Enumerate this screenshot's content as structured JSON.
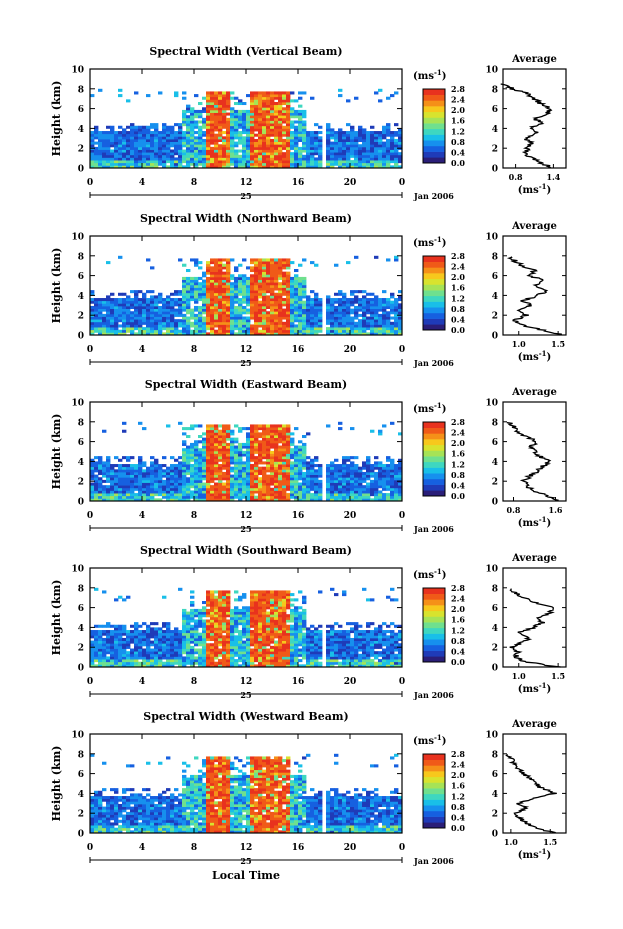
{
  "figure": {
    "x_axis_label": "Local Time",
    "day_label": "25",
    "month_label": "Jan 2006",
    "y_axis_label": "Height (km)",
    "units_label": "(ms",
    "units_exp": "-1",
    "units_close": ")",
    "average_title": "Average"
  },
  "chart_data": [
    {
      "type": "heatmap",
      "title": "Spectral Width (Vertical Beam)",
      "x_ticks": [
        "0",
        "4",
        "8",
        "12",
        "16",
        "20",
        "0"
      ],
      "xlim": [
        0,
        24
      ],
      "ylim": [
        0,
        10
      ],
      "y_ticks": [
        "0",
        "2",
        "4",
        "6",
        "8",
        "10"
      ],
      "colorbar": {
        "ticks": [
          "0.0",
          "0.4",
          "0.8",
          "1.2",
          "1.6",
          "2.0",
          "2.4",
          "2.8"
        ],
        "range": [
          0,
          2.8
        ]
      },
      "average_profile": {
        "xlabel_ticks": [
          "0.8",
          "1.4"
        ],
        "xlim": [
          0.6,
          1.6
        ],
        "height": [
          0,
          0.5,
          1,
          1.5,
          2,
          2.5,
          3,
          3.5,
          4,
          4.5,
          5,
          5.5,
          6,
          6.5,
          7,
          7.5,
          8,
          8.5
        ],
        "value": [
          1.4,
          1.2,
          1.05,
          0.95,
          1.0,
          1.05,
          0.95,
          1.15,
          1.0,
          1.25,
          1.1,
          1.3,
          1.35,
          1.2,
          1.1,
          1.0,
          0.75,
          0.6
        ]
      }
    },
    {
      "type": "heatmap",
      "title": "Spectral Width (Northward Beam)",
      "x_ticks": [
        "0",
        "4",
        "8",
        "12",
        "16",
        "20",
        "0"
      ],
      "xlim": [
        0,
        24
      ],
      "ylim": [
        0,
        10
      ],
      "y_ticks": [
        "0",
        "2",
        "4",
        "6",
        "8",
        "10"
      ],
      "colorbar": {
        "ticks": [
          "0.0",
          "0.4",
          "0.8",
          "1.2",
          "1.6",
          "2.0",
          "2.4",
          "2.8"
        ],
        "range": [
          0,
          2.8
        ]
      },
      "average_profile": {
        "xlabel_ticks": [
          "1.0",
          "1.5"
        ],
        "xlim": [
          0.8,
          1.6
        ],
        "height": [
          0,
          0.5,
          1,
          1.5,
          2,
          2.5,
          3,
          3.5,
          4,
          4.5,
          5,
          5.5,
          6,
          6.5,
          7,
          7.5,
          8
        ],
        "value": [
          1.55,
          1.3,
          1.05,
          0.95,
          1.1,
          1.0,
          1.15,
          1.05,
          1.25,
          1.35,
          1.2,
          1.3,
          1.15,
          1.2,
          1.05,
          0.95,
          0.85
        ]
      }
    },
    {
      "type": "heatmap",
      "title": "Spectral Width (Eastward Beam)",
      "x_ticks": [
        "0",
        "4",
        "8",
        "12",
        "16",
        "20",
        "0"
      ],
      "xlim": [
        0,
        24
      ],
      "ylim": [
        0,
        10
      ],
      "y_ticks": [
        "0",
        "2",
        "4",
        "6",
        "8",
        "10"
      ],
      "colorbar": {
        "ticks": [
          "0.0",
          "0.4",
          "0.8",
          "1.2",
          "1.6",
          "2.0",
          "2.4",
          "2.8"
        ],
        "range": [
          0,
          2.8
        ]
      },
      "average_profile": {
        "xlabel_ticks": [
          "0.8",
          "1.6"
        ],
        "xlim": [
          0.6,
          1.8
        ],
        "height": [
          0,
          0.5,
          1,
          1.5,
          2,
          2.5,
          3,
          3.5,
          4,
          4.5,
          5,
          5.5,
          6,
          6.5,
          7,
          7.5,
          8
        ],
        "value": [
          1.7,
          1.45,
          1.2,
          1.05,
          1.0,
          1.1,
          1.25,
          1.35,
          1.5,
          1.3,
          1.2,
          1.1,
          1.25,
          1.05,
          0.9,
          0.8,
          0.7
        ]
      }
    },
    {
      "type": "heatmap",
      "title": "Spectral Width (Southward Beam)",
      "x_ticks": [
        "0",
        "4",
        "8",
        "12",
        "16",
        "20",
        "0"
      ],
      "xlim": [
        0,
        24
      ],
      "ylim": [
        0,
        10
      ],
      "y_ticks": [
        "0",
        "2",
        "4",
        "6",
        "8",
        "10"
      ],
      "colorbar": {
        "ticks": [
          "0.0",
          "0.4",
          "0.8",
          "1.2",
          "1.6",
          "2.0",
          "2.4",
          "2.8"
        ],
        "range": [
          0,
          2.8
        ]
      },
      "average_profile": {
        "xlabel_ticks": [
          "1.0",
          "1.5"
        ],
        "xlim": [
          0.8,
          1.6
        ],
        "height": [
          0,
          0.5,
          1,
          1.5,
          2,
          2.5,
          3,
          3.5,
          4,
          4.5,
          5,
          5.5,
          6,
          6.5,
          7,
          7.5,
          8
        ],
        "value": [
          1.5,
          1.1,
          0.95,
          1.0,
          0.9,
          1.05,
          1.15,
          1.0,
          1.2,
          1.3,
          1.25,
          1.4,
          1.45,
          1.2,
          1.05,
          0.95,
          0.85
        ]
      }
    },
    {
      "type": "heatmap",
      "title": "Spectral Width (Westward Beam)",
      "x_ticks": [
        "0",
        "4",
        "8",
        "12",
        "16",
        "20",
        "0"
      ],
      "xlim": [
        0,
        24
      ],
      "ylim": [
        0,
        10
      ],
      "y_ticks": [
        "0",
        "2",
        "4",
        "6",
        "8",
        "10"
      ],
      "colorbar": {
        "ticks": [
          "0.0",
          "0.4",
          "0.8",
          "1.2",
          "1.6",
          "2.0",
          "2.4",
          "2.8"
        ],
        "range": [
          0,
          2.8
        ]
      },
      "average_profile": {
        "xlabel_ticks": [
          "1.0",
          "1.5"
        ],
        "xlim": [
          0.9,
          1.7
        ],
        "height": [
          0,
          0.5,
          1,
          1.5,
          2,
          2.5,
          3,
          3.5,
          4,
          4.5,
          5,
          5.5,
          6,
          6.5,
          7,
          7.5,
          8
        ],
        "value": [
          1.55,
          1.35,
          1.2,
          1.1,
          1.05,
          1.2,
          1.1,
          1.3,
          1.55,
          1.4,
          1.3,
          1.25,
          1.15,
          1.1,
          1.05,
          1.0,
          0.95
        ]
      }
    }
  ]
}
